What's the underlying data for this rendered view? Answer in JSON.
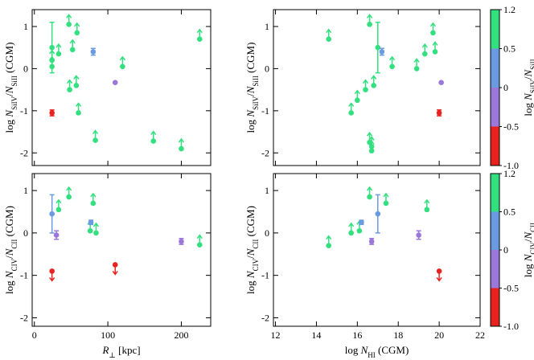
{
  "chart_data": [
    {
      "type": "scatter",
      "ylabel": [
        {
          "text": "log "
        },
        {
          "text": "N",
          "italic": true
        },
        {
          "text": "SiIV",
          "sub": true
        },
        {
          "text": "/"
        },
        {
          "text": "N",
          "italic": true
        },
        {
          "text": "SiII",
          "sub": true
        },
        {
          "text": " (CGM)"
        }
      ],
      "xlim": [
        -3,
        240
      ],
      "ylim": [
        -2.3,
        1.4
      ],
      "xticks": [
        0,
        100,
        200
      ],
      "yticks": [
        1,
        0,
        -1,
        -2
      ],
      "xticklabels": false,
      "points": [
        {
          "x": 24,
          "y": 0.5,
          "yerr": 0.6,
          "color": "#33e07f"
        },
        {
          "x": 24,
          "y": 0.2,
          "limit": "lower",
          "color": "#33e07f"
        },
        {
          "x": 24,
          "y": 0.05,
          "limit": "lower",
          "color": "#33e07f"
        },
        {
          "x": 33,
          "y": 0.35,
          "limit": "lower",
          "color": "#33e07f"
        },
        {
          "x": 47,
          "y": 1.05,
          "limit": "lower",
          "color": "#33e07f"
        },
        {
          "x": 52,
          "y": 0.45,
          "limit": "lower",
          "color": "#33e07f"
        },
        {
          "x": 58,
          "y": 0.85,
          "limit": "lower",
          "color": "#33e07f"
        },
        {
          "x": 48,
          "y": -0.5,
          "limit": "lower",
          "color": "#33e07f"
        },
        {
          "x": 57,
          "y": -0.4,
          "limit": "lower",
          "color": "#33e07f"
        },
        {
          "x": 60,
          "y": -1.05,
          "limit": "lower",
          "color": "#33e07f"
        },
        {
          "x": 83,
          "y": -1.7,
          "limit": "lower",
          "color": "#33e07f"
        },
        {
          "x": 120,
          "y": 0.05,
          "limit": "lower",
          "color": "#33e07f"
        },
        {
          "x": 162,
          "y": -1.72,
          "limit": "lower",
          "color": "#33e07f"
        },
        {
          "x": 200,
          "y": -1.9,
          "limit": "lower",
          "color": "#33e07f"
        },
        {
          "x": 225,
          "y": 0.7,
          "limit": "lower",
          "color": "#33e07f"
        },
        {
          "x": 80,
          "y": 0.4,
          "yerr": 0.08,
          "color": "#6a9ae0"
        },
        {
          "x": 110,
          "y": -0.33,
          "color": "#9b77d9"
        },
        {
          "x": 24,
          "y": -1.05,
          "yerr": 0.07,
          "color": "#e8231f"
        }
      ]
    },
    {
      "type": "scatter",
      "ylabel": [
        {
          "text": "log "
        },
        {
          "text": "N",
          "italic": true
        },
        {
          "text": "SiIV",
          "sub": true
        },
        {
          "text": "/"
        },
        {
          "text": "N",
          "italic": true
        },
        {
          "text": "SiII",
          "sub": true
        },
        {
          "text": " (CGM)"
        }
      ],
      "xlim": [
        11.9,
        22
      ],
      "ylim": [
        -2.3,
        1.4
      ],
      "xticks": [
        12,
        14,
        16,
        18,
        20,
        22
      ],
      "yticks": [
        1,
        0,
        -1,
        -2
      ],
      "xticklabels": false,
      "colorbar": {
        "label": [
          {
            "text": "log "
          },
          {
            "text": "N",
            "italic": true
          },
          {
            "text": "SiIV",
            "sub": true
          },
          {
            "text": "/"
          },
          {
            "text": "N",
            "italic": true
          },
          {
            "text": "SiII",
            "sub": true
          }
        ],
        "boundaries": [
          -1,
          -0.5,
          0,
          0.5,
          1.2
        ],
        "colors": [
          "#e8231f",
          "#9b77d9",
          "#6a9ae0",
          "#33e07f"
        ],
        "ticks": [
          {
            "value": -1,
            "label": "-1.0"
          },
          -0.5,
          0,
          0.5,
          1.2
        ]
      },
      "points": [
        {
          "x": 14.6,
          "y": 0.7,
          "limit": "lower",
          "color": "#33e07f"
        },
        {
          "x": 15.7,
          "y": -1.05,
          "limit": "lower",
          "color": "#33e07f"
        },
        {
          "x": 16.0,
          "y": -0.75,
          "limit": "lower",
          "color": "#33e07f"
        },
        {
          "x": 16.4,
          "y": -0.5,
          "limit": "lower",
          "color": "#33e07f"
        },
        {
          "x": 16.6,
          "y": 1.05,
          "limit": "lower",
          "color": "#33e07f"
        },
        {
          "x": 16.6,
          "y": -1.75,
          "limit": "lower",
          "color": "#33e07f"
        },
        {
          "x": 16.7,
          "y": -1.85,
          "limit": "lower",
          "color": "#33e07f"
        },
        {
          "x": 16.7,
          "y": -1.95,
          "limit": "lower",
          "color": "#33e07f"
        },
        {
          "x": 16.8,
          "y": -0.4,
          "limit": "lower",
          "color": "#33e07f"
        },
        {
          "x": 17.7,
          "y": 0.05,
          "limit": "lower",
          "color": "#33e07f"
        },
        {
          "x": 18.9,
          "y": 0.0,
          "limit": "lower",
          "color": "#33e07f"
        },
        {
          "x": 19.3,
          "y": 0.35,
          "limit": "lower",
          "color": "#33e07f"
        },
        {
          "x": 19.7,
          "y": 0.85,
          "limit": "lower",
          "color": "#33e07f"
        },
        {
          "x": 19.8,
          "y": 0.4,
          "limit": "lower",
          "color": "#33e07f"
        },
        {
          "x": 17.0,
          "y": 0.5,
          "yerr": 0.6,
          "color": "#33e07f"
        },
        {
          "x": 17.2,
          "y": 0.4,
          "yerr": 0.08,
          "color": "#6a9ae0"
        },
        {
          "x": 20.1,
          "y": -0.33,
          "color": "#9b77d9"
        },
        {
          "x": 20.0,
          "y": -1.05,
          "yerr": 0.07,
          "color": "#e8231f"
        }
      ]
    },
    {
      "type": "scatter",
      "ylabel": [
        {
          "text": "log "
        },
        {
          "text": "N",
          "italic": true
        },
        {
          "text": "CIV",
          "sub": true
        },
        {
          "text": "/"
        },
        {
          "text": "N",
          "italic": true
        },
        {
          "text": "CII",
          "sub": true
        },
        {
          "text": " (CGM)"
        }
      ],
      "xlabel": [
        {
          "text": "R",
          "italic": true
        },
        {
          "text": "⊥",
          "sub": true
        },
        {
          "text": " [kpc]"
        }
      ],
      "xlim": [
        -3,
        240
      ],
      "ylim": [
        -2.2,
        1.4
      ],
      "xticks": [
        0,
        100,
        200
      ],
      "yticks": [
        1,
        0,
        -1,
        -2
      ],
      "xticklabels": true,
      "points": [
        {
          "x": 24,
          "y": 0.45,
          "yerr": 0.45,
          "color": "#6a9ae0"
        },
        {
          "x": 30,
          "y": -0.05,
          "yerr": 0.1,
          "color": "#9b77d9"
        },
        {
          "x": 33,
          "y": 0.55,
          "limit": "lower",
          "color": "#33e07f"
        },
        {
          "x": 47,
          "y": 0.85,
          "limit": "lower",
          "color": "#33e07f"
        },
        {
          "x": 80,
          "y": 0.7,
          "limit": "lower",
          "color": "#33e07f"
        },
        {
          "x": 76,
          "y": 0.05,
          "limit": "lower",
          "color": "#33e07f"
        },
        {
          "x": 84,
          "y": 0.0,
          "limit": "lower",
          "color": "#33e07f"
        },
        {
          "x": 225,
          "y": -0.28,
          "limit": "lower",
          "color": "#33e07f"
        },
        {
          "x": 77,
          "y": 0.25,
          "yerr": 0.05,
          "color": "#6a9ae0"
        },
        {
          "x": 200,
          "y": -0.2,
          "yerr": 0.07,
          "color": "#9b77d9"
        },
        {
          "x": 24,
          "y": -0.9,
          "limit": "upper",
          "color": "#e8231f"
        },
        {
          "x": 110,
          "y": -0.75,
          "limit": "upper",
          "color": "#e8231f"
        }
      ]
    },
    {
      "type": "scatter",
      "ylabel": [
        {
          "text": "log "
        },
        {
          "text": "N",
          "italic": true
        },
        {
          "text": "CIV",
          "sub": true
        },
        {
          "text": "/"
        },
        {
          "text": "N",
          "italic": true
        },
        {
          "text": "CII",
          "sub": true
        },
        {
          "text": " (CGM)"
        }
      ],
      "xlabel": [
        {
          "text": "log "
        },
        {
          "text": "N",
          "italic": true
        },
        {
          "text": "HI",
          "sub": true
        },
        {
          "text": " (CGM)"
        }
      ],
      "xlim": [
        11.9,
        22
      ],
      "ylim": [
        -2.2,
        1.4
      ],
      "xticks": [
        12,
        14,
        16,
        18,
        20,
        22
      ],
      "yticks": [
        1,
        0,
        -1,
        -2
      ],
      "xticklabels": true,
      "colorbar": {
        "label": [
          {
            "text": "log "
          },
          {
            "text": "N",
            "italic": true
          },
          {
            "text": "CIV",
            "sub": true
          },
          {
            "text": "/"
          },
          {
            "text": "N",
            "italic": true
          },
          {
            "text": "CII",
            "sub": true
          }
        ],
        "boundaries": [
          -1,
          -0.5,
          0,
          0.5,
          1.2
        ],
        "colors": [
          "#e8231f",
          "#9b77d9",
          "#6a9ae0",
          "#33e07f"
        ],
        "ticks": [
          {
            "value": -1,
            "label": "-1.0"
          },
          -0.5,
          0,
          0.5,
          1.2
        ]
      },
      "points": [
        {
          "x": 14.6,
          "y": -0.3,
          "limit": "lower",
          "color": "#33e07f"
        },
        {
          "x": 15.7,
          "y": 0.0,
          "limit": "lower",
          "color": "#33e07f"
        },
        {
          "x": 16.1,
          "y": 0.05,
          "limit": "lower",
          "color": "#33e07f"
        },
        {
          "x": 16.6,
          "y": 0.85,
          "limit": "lower",
          "color": "#33e07f"
        },
        {
          "x": 17.4,
          "y": 0.7,
          "limit": "lower",
          "color": "#33e07f"
        },
        {
          "x": 19.4,
          "y": 0.55,
          "limit": "lower",
          "color": "#33e07f"
        },
        {
          "x": 16.2,
          "y": 0.25,
          "yerr": 0.05,
          "color": "#6a9ae0"
        },
        {
          "x": 17.0,
          "y": 0.45,
          "yerr": 0.45,
          "color": "#6a9ae0"
        },
        {
          "x": 16.7,
          "y": -0.2,
          "yerr": 0.07,
          "color": "#9b77d9"
        },
        {
          "x": 19.0,
          "y": -0.05,
          "yerr": 0.1,
          "color": "#9b77d9"
        },
        {
          "x": 20.0,
          "y": -0.9,
          "limit": "upper",
          "color": "#e8231f"
        }
      ]
    }
  ]
}
